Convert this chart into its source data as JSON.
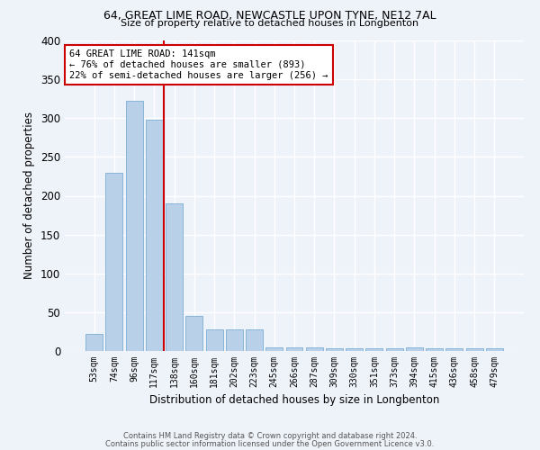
{
  "title_line1": "64, GREAT LIME ROAD, NEWCASTLE UPON TYNE, NE12 7AL",
  "title_line2": "Size of property relative to detached houses in Longbenton",
  "xlabel": "Distribution of detached houses by size in Longbenton",
  "ylabel": "Number of detached properties",
  "categories": [
    "53sqm",
    "74sqm",
    "96sqm",
    "117sqm",
    "138sqm",
    "160sqm",
    "181sqm",
    "202sqm",
    "223sqm",
    "245sqm",
    "266sqm",
    "287sqm",
    "309sqm",
    "330sqm",
    "351sqm",
    "373sqm",
    "394sqm",
    "415sqm",
    "436sqm",
    "458sqm",
    "479sqm"
  ],
  "values": [
    22,
    230,
    322,
    298,
    190,
    45,
    28,
    28,
    28,
    5,
    5,
    5,
    3,
    3,
    3,
    3,
    5,
    3,
    3,
    3,
    3
  ],
  "bar_color": "#b8d0e8",
  "bar_edge_color": "#7aadd4",
  "vline_index": 4,
  "vline_color": "#cc0000",
  "annotation_text": "64 GREAT LIME ROAD: 141sqm\n← 76% of detached houses are smaller (893)\n22% of semi-detached houses are larger (256) →",
  "annotation_box_facecolor": "#ffffff",
  "annotation_box_edgecolor": "#cc0000",
  "background_color": "#eef2f9",
  "grid_color": "#ffffff",
  "footer_line1": "Contains HM Land Registry data © Crown copyright and database right 2024.",
  "footer_line2": "Contains public sector information licensed under the Open Government Licence v3.0.",
  "ylim": [
    0,
    400
  ],
  "yticks": [
    0,
    50,
    100,
    150,
    200,
    250,
    300,
    350,
    400
  ]
}
